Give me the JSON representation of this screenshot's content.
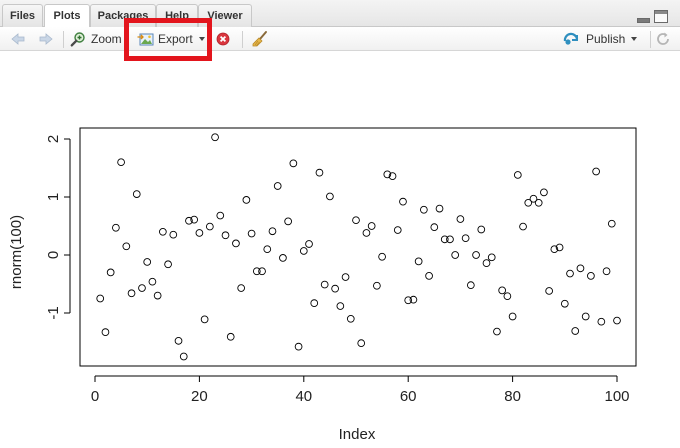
{
  "tabs": [
    {
      "label": "Files",
      "active": false
    },
    {
      "label": "Plots",
      "active": true
    },
    {
      "label": "Packages",
      "active": false
    },
    {
      "label": "Help",
      "active": false
    },
    {
      "label": "Viewer",
      "active": false
    }
  ],
  "toolbar": {
    "zoom_label": "Zoom",
    "export_label": "Export",
    "publish_label": "Publish",
    "icons": [
      "back-arrow-icon",
      "forward-arrow-icon",
      "zoom-icon",
      "export-icon",
      "remove-plot-icon",
      "broom-icon",
      "publish-icon",
      "refresh-icon"
    ]
  },
  "highlight_color": "#e3151d",
  "chart_data": {
    "type": "scatter",
    "xlabel": "Index",
    "ylabel": "rnorm(100)",
    "xlim": [
      0,
      100
    ],
    "ylim": [
      -1.75,
      2.05
    ],
    "x_ticks": [
      0,
      20,
      40,
      60,
      80,
      100
    ],
    "y_ticks": [
      -1,
      0,
      1,
      2
    ],
    "marker": "open-circle",
    "x": [
      1,
      2,
      3,
      4,
      5,
      6,
      7,
      8,
      9,
      10,
      11,
      12,
      13,
      14,
      15,
      16,
      17,
      18,
      19,
      20,
      21,
      22,
      23,
      24,
      25,
      26,
      27,
      28,
      29,
      30,
      31,
      32,
      33,
      34,
      35,
      36,
      37,
      38,
      39,
      40,
      41,
      42,
      43,
      44,
      45,
      46,
      47,
      48,
      49,
      50,
      51,
      52,
      53,
      54,
      55,
      56,
      57,
      58,
      59,
      60,
      61,
      62,
      63,
      64,
      65,
      66,
      67,
      68,
      69,
      70,
      71,
      72,
      73,
      74,
      75,
      76,
      77,
      78,
      79,
      80,
      81,
      82,
      83,
      84,
      85,
      86,
      87,
      88,
      89,
      90,
      91,
      92,
      93,
      94,
      95,
      96,
      97,
      98,
      99,
      100
    ],
    "values": [
      -0.75,
      -1.33,
      -0.3,
      0.47,
      1.6,
      0.15,
      -0.66,
      1.05,
      -0.57,
      -0.12,
      -0.46,
      -0.7,
      0.4,
      -0.16,
      0.35,
      -1.48,
      -1.75,
      0.59,
      0.61,
      0.38,
      -1.11,
      0.49,
      2.03,
      0.68,
      0.34,
      -1.41,
      0.2,
      -0.57,
      0.95,
      0.37,
      -0.28,
      -0.28,
      0.1,
      0.41,
      1.19,
      -0.05,
      0.58,
      1.58,
      -1.58,
      0.07,
      0.19,
      -0.83,
      1.42,
      -0.51,
      1.01,
      -0.58,
      -0.88,
      -0.38,
      -1.1,
      0.6,
      -1.52,
      0.38,
      0.5,
      -0.53,
      -0.03,
      1.39,
      1.36,
      0.43,
      0.92,
      -0.78,
      -0.77,
      -0.11,
      0.78,
      -0.36,
      0.48,
      0.8,
      0.27,
      0.27,
      0.0,
      0.62,
      0.29,
      -0.52,
      0.0,
      0.44,
      -0.14,
      -0.04,
      -1.32,
      -0.61,
      -0.71,
      -1.06,
      1.38,
      0.49,
      0.9,
      0.97,
      0.9,
      1.08,
      -0.62,
      0.1,
      0.13,
      -0.84,
      -0.32,
      -1.31,
      -0.23,
      -1.06,
      -0.36,
      1.44,
      -1.15,
      -0.28,
      0.54,
      -1.13
    ]
  }
}
